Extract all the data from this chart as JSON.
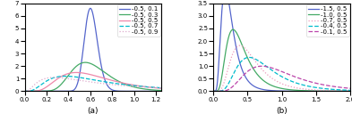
{
  "subplot_a": {
    "mu": -0.5,
    "sigmas": [
      0.1,
      0.3,
      0.5,
      0.7,
      0.9
    ],
    "legend_labels": [
      "-0.5, 0.1",
      "-0.5, 0.3",
      "-0.5, 0.5",
      "-0.5, 0.7",
      "-0.5, 0.9"
    ],
    "colors": [
      "#5566cc",
      "#44aa66",
      "#ee88aa",
      "#00bbcc",
      "#ddaacc"
    ],
    "linestyles": [
      "-",
      "-",
      "-",
      "--",
      ":"
    ],
    "xmin": 0,
    "xmax": 1.25,
    "ymin": 0,
    "ymax": 7,
    "xticks": [
      0,
      0.2,
      0.4,
      0.6,
      0.8,
      1.0,
      1.2
    ],
    "yticks": [
      0,
      1,
      2,
      3,
      4,
      5,
      6,
      7
    ],
    "xlabel": "(a)"
  },
  "subplot_b": {
    "sigma": 0.5,
    "mus": [
      -1.5,
      -1.0,
      -0.7,
      -0.4,
      -0.1
    ],
    "legend_labels": [
      "-1.5, 0.5",
      "-1.0, 0.5",
      "-0.7, 0.5",
      "-0.4, 0.5",
      "-0.1, 0.5"
    ],
    "colors": [
      "#5566cc",
      "#44aa66",
      "#ee99bb",
      "#00bbcc",
      "#bb44aa"
    ],
    "linestyles": [
      "-",
      "-",
      ":",
      "--",
      "--"
    ],
    "xmin": 0,
    "xmax": 2.0,
    "ymin": 0,
    "ymax": 3.5,
    "xticks": [
      0,
      0.5,
      1.0,
      1.5,
      2.0
    ],
    "yticks": [
      0,
      0.5,
      1.0,
      1.5,
      2.0,
      2.5,
      3.0,
      3.5
    ],
    "xlabel": "(b)"
  },
  "font_size": 6.5,
  "legend_font_size": 5,
  "tick_font_size": 5,
  "linewidth": 0.9
}
